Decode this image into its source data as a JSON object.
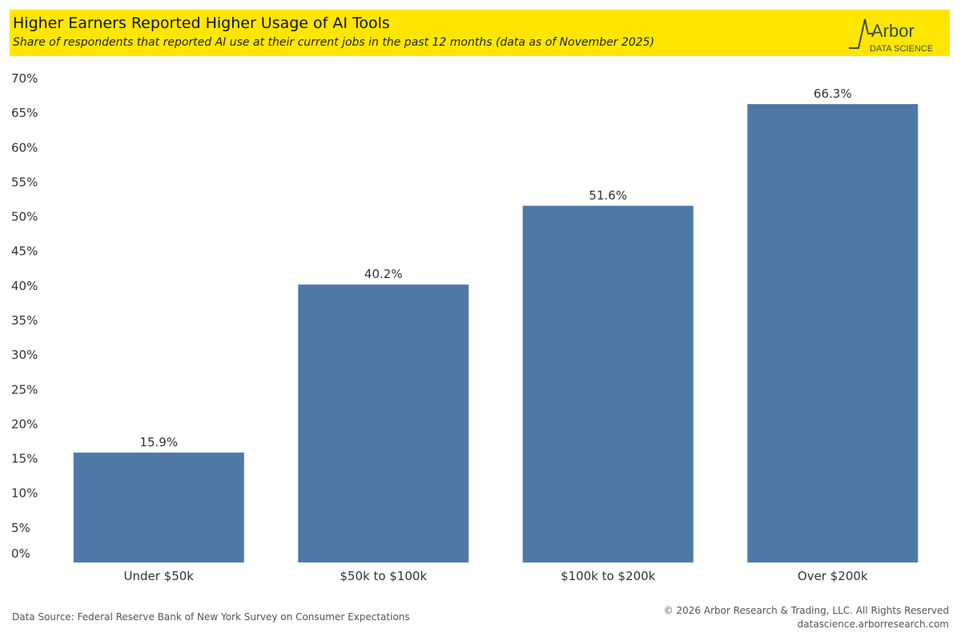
{
  "header": {
    "title": "Higher Earners Reported Higher Usage of AI Tools",
    "subtitle": "Share of respondents that reported AI use at their current jobs in the past 12 months (data as of November 2025)",
    "logo_word": "Arbor",
    "logo_sub": "DATA SCIENCE"
  },
  "footer": {
    "source": "Data Source: Federal Reserve Bank of New York Survey on Consumer Expectations",
    "copyright": "© 2026 Arbor Research & Trading, LLC. All Rights Reserved",
    "website": "datascience.arborresearch.com"
  },
  "colors": {
    "bar": "#4e79a7",
    "header_bg": "#ffe600",
    "logo": "#3d4a3d"
  },
  "chart_data": {
    "type": "bar",
    "categories": [
      "Under $50k",
      "$50k to $100k",
      "$100k to $200k",
      "Over $200k"
    ],
    "values": [
      15.9,
      40.2,
      51.6,
      66.3
    ],
    "value_labels": [
      "15.9%",
      "40.2%",
      "51.6%",
      "66.3%"
    ],
    "y_ticks": [
      0,
      5,
      10,
      15,
      20,
      25,
      30,
      35,
      40,
      45,
      50,
      55,
      60,
      65,
      70
    ],
    "y_tick_labels": [
      "0%",
      "5%",
      "10%",
      "15%",
      "20%",
      "25%",
      "30%",
      "35%",
      "40%",
      "45%",
      "50%",
      "55%",
      "60%",
      "65%",
      "70%"
    ],
    "ylim": [
      0,
      70
    ],
    "grid": false,
    "legend": "none",
    "xlabel": "",
    "ylabel": ""
  }
}
